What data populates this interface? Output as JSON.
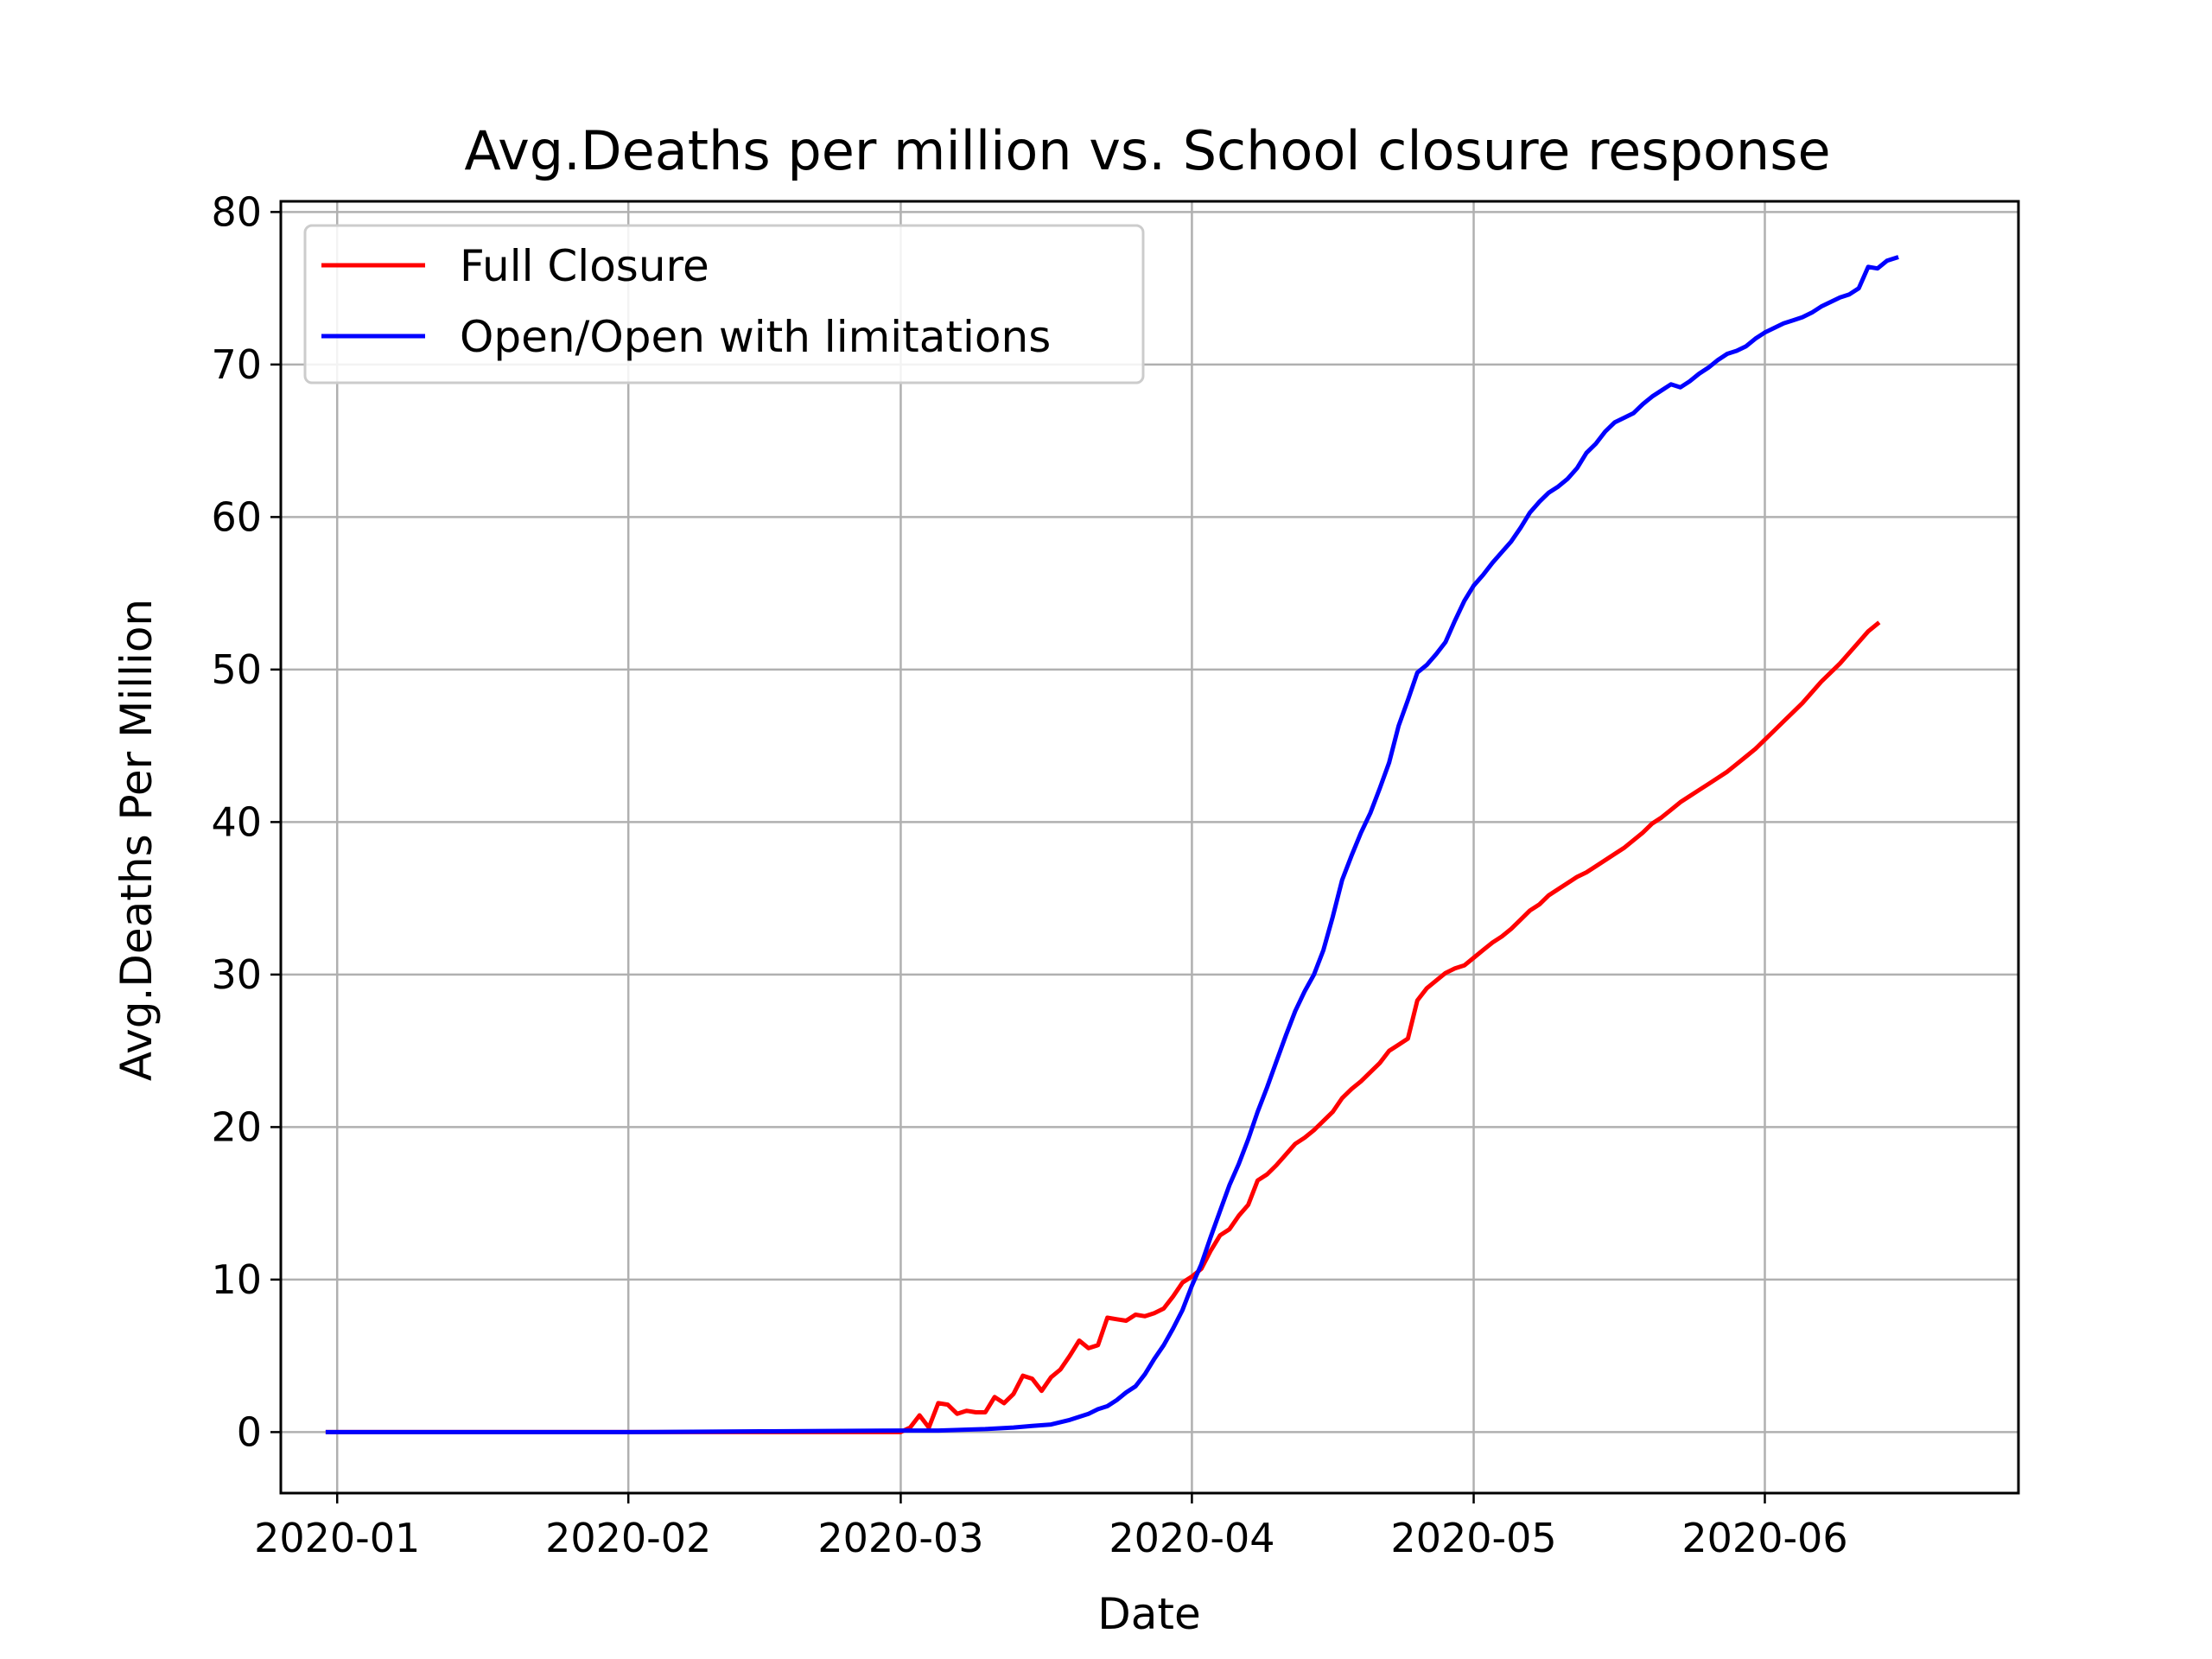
{
  "chart_data": {
    "type": "line",
    "title": "Avg.Deaths per million vs. School closure response",
    "xlabel": "Date",
    "ylabel": "Avg.Deaths Per Million",
    "x_type": "date",
    "xlim": [
      "2019-12-26",
      "2020-06-28"
    ],
    "ylim": [
      -4,
      80.7
    ],
    "x_ticks": [
      "2020-01-01",
      "2020-02-01",
      "2020-03-01",
      "2020-04-01",
      "2020-05-01",
      "2020-06-01"
    ],
    "x_tick_labels": [
      "2020-01",
      "2020-02",
      "2020-03",
      "2020-04",
      "2020-05",
      "2020-06"
    ],
    "y_ticks": [
      0,
      10,
      20,
      30,
      40,
      50,
      60,
      70,
      80
    ],
    "y_tick_labels": [
      "0",
      "10",
      "20",
      "30",
      "40",
      "50",
      "60",
      "70",
      "80"
    ],
    "grid": true,
    "legend_position": "top-left",
    "series": [
      {
        "name": "Full Closure",
        "color": "#ff0000",
        "points": [
          [
            "2019-12-31",
            0
          ],
          [
            "2020-01-15",
            0
          ],
          [
            "2020-02-01",
            0
          ],
          [
            "2020-02-15",
            0
          ],
          [
            "2020-03-01",
            0
          ],
          [
            "2020-03-02",
            0.3
          ],
          [
            "2020-03-03",
            1.1
          ],
          [
            "2020-03-04",
            0.3
          ],
          [
            "2020-03-05",
            1.9
          ],
          [
            "2020-03-06",
            1.8
          ],
          [
            "2020-03-07",
            1.2
          ],
          [
            "2020-03-08",
            1.4
          ],
          [
            "2020-03-09",
            1.3
          ],
          [
            "2020-03-10",
            1.3
          ],
          [
            "2020-03-11",
            2.3
          ],
          [
            "2020-03-12",
            1.9
          ],
          [
            "2020-03-13",
            2.5
          ],
          [
            "2020-03-14",
            3.7
          ],
          [
            "2020-03-15",
            3.5
          ],
          [
            "2020-03-16",
            2.7
          ],
          [
            "2020-03-17",
            3.6
          ],
          [
            "2020-03-18",
            4.1
          ],
          [
            "2020-03-19",
            5.0
          ],
          [
            "2020-03-20",
            6.0
          ],
          [
            "2020-03-21",
            5.5
          ],
          [
            "2020-03-22",
            5.7
          ],
          [
            "2020-03-23",
            7.5
          ],
          [
            "2020-03-24",
            7.4
          ],
          [
            "2020-03-25",
            7.3
          ],
          [
            "2020-03-26",
            7.7
          ],
          [
            "2020-03-27",
            7.6
          ],
          [
            "2020-03-28",
            7.8
          ],
          [
            "2020-03-29",
            8.1
          ],
          [
            "2020-03-30",
            8.9
          ],
          [
            "2020-03-31",
            9.8
          ],
          [
            "2020-04-01",
            10.2
          ],
          [
            "2020-04-02",
            10.7
          ],
          [
            "2020-04-03",
            11.9
          ],
          [
            "2020-04-04",
            12.9
          ],
          [
            "2020-04-05",
            13.3
          ],
          [
            "2020-04-06",
            14.2
          ],
          [
            "2020-04-07",
            14.9
          ],
          [
            "2020-04-08",
            16.5
          ],
          [
            "2020-04-09",
            16.9
          ],
          [
            "2020-04-10",
            17.5
          ],
          [
            "2020-04-11",
            18.2
          ],
          [
            "2020-04-12",
            18.9
          ],
          [
            "2020-04-13",
            19.3
          ],
          [
            "2020-04-14",
            19.8
          ],
          [
            "2020-04-15",
            20.4
          ],
          [
            "2020-04-16",
            21.0
          ],
          [
            "2020-04-17",
            21.9
          ],
          [
            "2020-04-18",
            22.5
          ],
          [
            "2020-04-19",
            23.0
          ],
          [
            "2020-04-20",
            23.6
          ],
          [
            "2020-04-21",
            24.2
          ],
          [
            "2020-04-22",
            25.0
          ],
          [
            "2020-04-23",
            25.4
          ],
          [
            "2020-04-24",
            25.8
          ],
          [
            "2020-04-25",
            28.3
          ],
          [
            "2020-04-26",
            29.1
          ],
          [
            "2020-04-27",
            29.6
          ],
          [
            "2020-04-28",
            30.1
          ],
          [
            "2020-04-29",
            30.4
          ],
          [
            "2020-04-30",
            30.6
          ],
          [
            "2020-05-01",
            31.1
          ],
          [
            "2020-05-02",
            31.6
          ],
          [
            "2020-05-03",
            32.1
          ],
          [
            "2020-05-04",
            32.5
          ],
          [
            "2020-05-05",
            33.0
          ],
          [
            "2020-05-06",
            33.6
          ],
          [
            "2020-05-07",
            34.2
          ],
          [
            "2020-05-08",
            34.6
          ],
          [
            "2020-05-09",
            35.2
          ],
          [
            "2020-05-10",
            35.6
          ],
          [
            "2020-05-11",
            36.0
          ],
          [
            "2020-05-12",
            36.4
          ],
          [
            "2020-05-13",
            36.7
          ],
          [
            "2020-05-14",
            37.1
          ],
          [
            "2020-05-15",
            37.5
          ],
          [
            "2020-05-16",
            37.9
          ],
          [
            "2020-05-17",
            38.3
          ],
          [
            "2020-05-18",
            38.8
          ],
          [
            "2020-05-19",
            39.3
          ],
          [
            "2020-05-20",
            39.9
          ],
          [
            "2020-05-21",
            40.3
          ],
          [
            "2020-05-22",
            40.8
          ],
          [
            "2020-05-23",
            41.3
          ],
          [
            "2020-05-24",
            41.7
          ],
          [
            "2020-05-25",
            42.1
          ],
          [
            "2020-05-26",
            42.5
          ],
          [
            "2020-05-27",
            42.9
          ],
          [
            "2020-05-28",
            43.3
          ],
          [
            "2020-05-29",
            43.8
          ],
          [
            "2020-05-30",
            44.3
          ],
          [
            "2020-05-31",
            44.8
          ],
          [
            "2020-06-01",
            45.4
          ],
          [
            "2020-06-02",
            46.0
          ],
          [
            "2020-06-03",
            46.6
          ],
          [
            "2020-06-04",
            47.2
          ],
          [
            "2020-06-05",
            47.8
          ],
          [
            "2020-06-06",
            48.5
          ],
          [
            "2020-06-07",
            49.2
          ],
          [
            "2020-06-08",
            49.8
          ],
          [
            "2020-06-09",
            50.4
          ],
          [
            "2020-06-10",
            51.1
          ],
          [
            "2020-06-11",
            51.8
          ],
          [
            "2020-06-12",
            52.5
          ],
          [
            "2020-06-13",
            53.0
          ]
        ]
      },
      {
        "name": "Open/Open with limitations",
        "color": "#0000ff",
        "points": [
          [
            "2019-12-31",
            0
          ],
          [
            "2020-01-15",
            0
          ],
          [
            "2020-02-01",
            0
          ],
          [
            "2020-02-15",
            0.05
          ],
          [
            "2020-03-01",
            0.1
          ],
          [
            "2020-03-05",
            0.1
          ],
          [
            "2020-03-10",
            0.2
          ],
          [
            "2020-03-13",
            0.3
          ],
          [
            "2020-03-15",
            0.4
          ],
          [
            "2020-03-17",
            0.5
          ],
          [
            "2020-03-19",
            0.8
          ],
          [
            "2020-03-21",
            1.2
          ],
          [
            "2020-03-22",
            1.5
          ],
          [
            "2020-03-23",
            1.7
          ],
          [
            "2020-03-24",
            2.1
          ],
          [
            "2020-03-25",
            2.6
          ],
          [
            "2020-03-26",
            3.0
          ],
          [
            "2020-03-27",
            3.8
          ],
          [
            "2020-03-28",
            4.8
          ],
          [
            "2020-03-29",
            5.7
          ],
          [
            "2020-03-30",
            6.8
          ],
          [
            "2020-03-31",
            8.0
          ],
          [
            "2020-04-01",
            9.6
          ],
          [
            "2020-04-02",
            11.0
          ],
          [
            "2020-04-03",
            12.8
          ],
          [
            "2020-04-04",
            14.5
          ],
          [
            "2020-04-05",
            16.2
          ],
          [
            "2020-04-06",
            17.6
          ],
          [
            "2020-04-07",
            19.2
          ],
          [
            "2020-04-08",
            21.0
          ],
          [
            "2020-04-09",
            22.6
          ],
          [
            "2020-04-10",
            24.3
          ],
          [
            "2020-04-11",
            26.0
          ],
          [
            "2020-04-12",
            27.6
          ],
          [
            "2020-04-13",
            28.9
          ],
          [
            "2020-04-14",
            30.0
          ],
          [
            "2020-04-15",
            31.6
          ],
          [
            "2020-04-16",
            33.8
          ],
          [
            "2020-04-17",
            36.2
          ],
          [
            "2020-04-18",
            37.8
          ],
          [
            "2020-04-19",
            39.3
          ],
          [
            "2020-04-20",
            40.6
          ],
          [
            "2020-04-21",
            42.2
          ],
          [
            "2020-04-22",
            43.9
          ],
          [
            "2020-04-23",
            46.3
          ],
          [
            "2020-04-24",
            48.0
          ],
          [
            "2020-04-25",
            49.8
          ],
          [
            "2020-04-26",
            50.3
          ],
          [
            "2020-04-27",
            51.0
          ],
          [
            "2020-04-28",
            51.8
          ],
          [
            "2020-04-29",
            53.2
          ],
          [
            "2020-04-30",
            54.5
          ],
          [
            "2020-05-01",
            55.5
          ],
          [
            "2020-05-02",
            56.2
          ],
          [
            "2020-05-03",
            57.0
          ],
          [
            "2020-05-04",
            57.7
          ],
          [
            "2020-05-05",
            58.4
          ],
          [
            "2020-05-06",
            59.3
          ],
          [
            "2020-05-07",
            60.3
          ],
          [
            "2020-05-08",
            61.0
          ],
          [
            "2020-05-09",
            61.6
          ],
          [
            "2020-05-10",
            62.0
          ],
          [
            "2020-05-11",
            62.5
          ],
          [
            "2020-05-12",
            63.2
          ],
          [
            "2020-05-13",
            64.2
          ],
          [
            "2020-05-14",
            64.8
          ],
          [
            "2020-05-15",
            65.6
          ],
          [
            "2020-05-16",
            66.2
          ],
          [
            "2020-05-17",
            66.5
          ],
          [
            "2020-05-18",
            66.8
          ],
          [
            "2020-05-19",
            67.4
          ],
          [
            "2020-05-20",
            67.9
          ],
          [
            "2020-05-21",
            68.3
          ],
          [
            "2020-05-22",
            68.7
          ],
          [
            "2020-05-23",
            68.5
          ],
          [
            "2020-05-24",
            68.9
          ],
          [
            "2020-05-25",
            69.4
          ],
          [
            "2020-05-26",
            69.8
          ],
          [
            "2020-05-27",
            70.3
          ],
          [
            "2020-05-28",
            70.7
          ],
          [
            "2020-05-29",
            70.9
          ],
          [
            "2020-05-30",
            71.2
          ],
          [
            "2020-05-31",
            71.7
          ],
          [
            "2020-06-01",
            72.1
          ],
          [
            "2020-06-02",
            72.4
          ],
          [
            "2020-06-03",
            72.7
          ],
          [
            "2020-06-04",
            72.9
          ],
          [
            "2020-06-05",
            73.1
          ],
          [
            "2020-06-06",
            73.4
          ],
          [
            "2020-06-07",
            73.8
          ],
          [
            "2020-06-08",
            74.1
          ],
          [
            "2020-06-09",
            74.4
          ],
          [
            "2020-06-10",
            74.6
          ],
          [
            "2020-06-11",
            75.0
          ],
          [
            "2020-06-12",
            76.4
          ],
          [
            "2020-06-13",
            76.3
          ],
          [
            "2020-06-14",
            76.8
          ],
          [
            "2020-06-15",
            77.0
          ]
        ]
      }
    ]
  }
}
